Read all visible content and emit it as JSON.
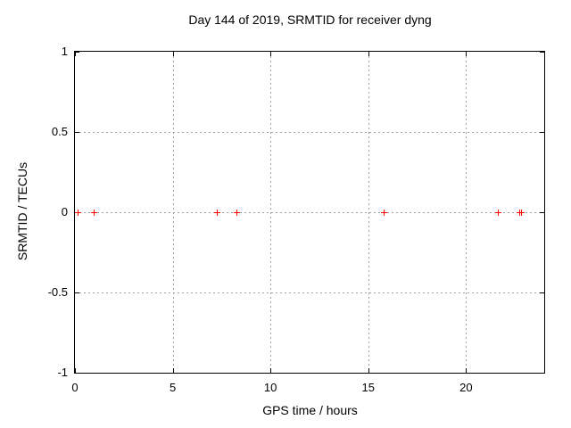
{
  "chart_data": {
    "type": "scatter",
    "title": "Day 144 of 2019, SRMTID for receiver dyng",
    "xlabel": "GPS time / hours",
    "ylabel": "SRMTID / TECUs",
    "xlim": [
      0,
      24
    ],
    "ylim": [
      -1,
      1
    ],
    "xticks": [
      {
        "value": 0,
        "label": "0"
      },
      {
        "value": 5,
        "label": "5"
      },
      {
        "value": 10,
        "label": "10"
      },
      {
        "value": 15,
        "label": "15"
      },
      {
        "value": 20,
        "label": "20"
      }
    ],
    "yticks": [
      {
        "value": -1,
        "label": "-1"
      },
      {
        "value": -0.5,
        "label": "-0.5"
      },
      {
        "value": 0,
        "label": "0"
      },
      {
        "value": 0.5,
        "label": "0.5"
      },
      {
        "value": 1,
        "label": "1"
      }
    ],
    "grid": true,
    "legend": "none",
    "marker": "plus",
    "marker_color": "#ff0000",
    "border_color": "#000000",
    "grid_color": "#a0a0a0",
    "series": [
      {
        "name": "SRMTID",
        "points": [
          {
            "x": 0.15,
            "y": 0
          },
          {
            "x": 1.0,
            "y": 0
          },
          {
            "x": 7.3,
            "y": 0
          },
          {
            "x": 8.3,
            "y": 0
          },
          {
            "x": 15.8,
            "y": 0
          },
          {
            "x": 21.65,
            "y": 0
          },
          {
            "x": 22.75,
            "y": 0
          },
          {
            "x": 22.85,
            "y": 0
          }
        ]
      }
    ]
  }
}
